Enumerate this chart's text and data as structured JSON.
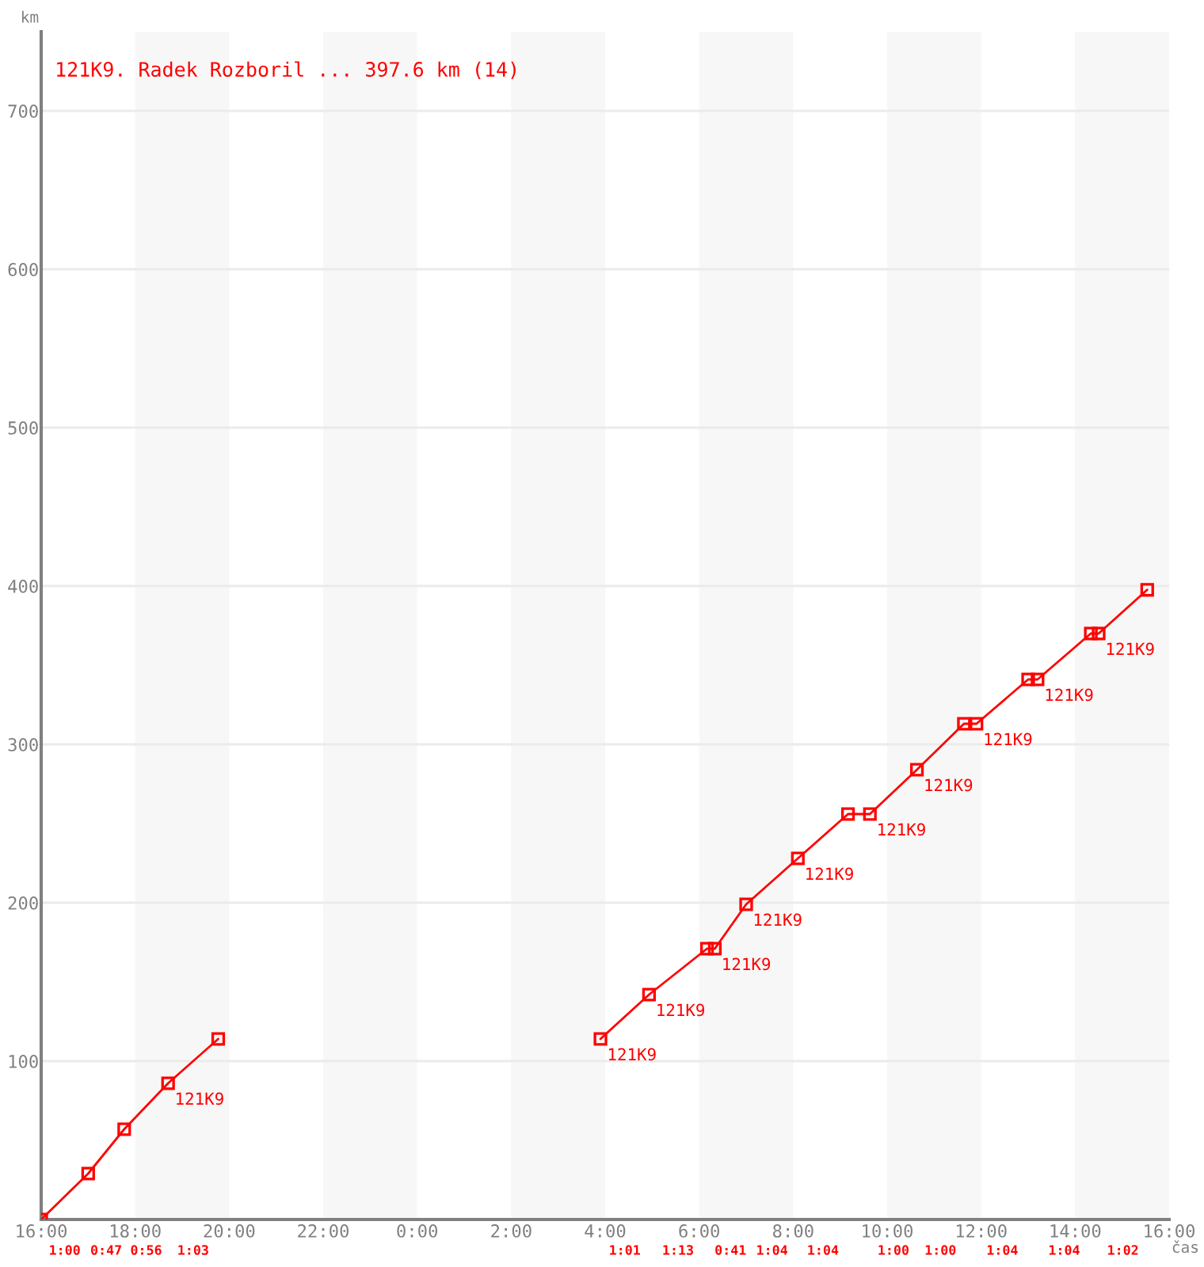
{
  "chart_data": {
    "type": "line",
    "title": "121K9. Radek Rozboril ... 397.6 km (14)",
    "xlabel": "čas",
    "ylabel": "km",
    "series": [
      {
        "color": "#ff0000",
        "x": [
          "2000-01-01T16:00",
          "2000-01-01T17:00",
          "2000-01-01T17:46",
          "2000-01-01T18:42",
          "2000-01-01T19:46"
        ],
        "values": [
          0,
          29,
          57,
          86,
          114
        ]
      },
      {
        "color": "#ff0000",
        "x": [
          "2000-01-02T03:54",
          "2000-01-02T04:56",
          "2000-01-02T06:10",
          "2000-01-02T06:20",
          "2000-01-02T07:00",
          "2000-01-02T08:06",
          "2000-01-02T09:10",
          "2000-01-02T09:38",
          "2000-01-02T10:38",
          "2000-01-02T11:38",
          "2000-01-02T11:54",
          "2000-01-02T13:00",
          "2000-01-02T13:12",
          "2000-01-02T14:20",
          "2000-01-02T14:30",
          "2000-01-02T15:32"
        ],
        "values": [
          114,
          142,
          171,
          171,
          199,
          228,
          256,
          256,
          284,
          313,
          313,
          341,
          341,
          370,
          370,
          397.6
        ]
      }
    ],
    "xlim": [
      "2000-01-01T16:00",
      "2000-01-02T16:00"
    ],
    "xticks": [
      {
        "value": "2000-01-01T16:00",
        "label": "16:00"
      },
      {
        "value": "2000-01-01T18:00",
        "label": "18:00"
      },
      {
        "value": "2000-01-01T20:00",
        "label": "20:00"
      },
      {
        "value": "2000-01-01T22:00",
        "label": "22:00"
      },
      {
        "value": "2000-01-02T00:00",
        "label": "0:00"
      },
      {
        "value": "2000-01-02T02:00",
        "label": "2:00"
      },
      {
        "value": "2000-01-02T04:00",
        "label": "4:00"
      },
      {
        "value": "2000-01-02T06:00",
        "label": "6:00"
      },
      {
        "value": "2000-01-02T08:00",
        "label": "8:00"
      },
      {
        "value": "2000-01-02T10:00",
        "label": "10:00"
      },
      {
        "value": "2000-01-02T12:00",
        "label": "12:00"
      },
      {
        "value": "2000-01-02T14:00",
        "label": "14:00"
      },
      {
        "value": "2000-01-02T16:00",
        "label": "16:00"
      }
    ],
    "ylim": [
      0,
      750
    ],
    "yticks": [
      100,
      200,
      300,
      400,
      500,
      600,
      700
    ],
    "grid": "y",
    "marker": "square",
    "line_style": "solid",
    "bands": [
      {
        "axis": "x",
        "from": "2000-01-01T18:00",
        "to": "2000-01-01T20:00",
        "color": "#f7f7f7"
      },
      {
        "axis": "x",
        "from": "2000-01-01T22:00",
        "to": "2000-01-02T00:00",
        "color": "#f7f7f7"
      },
      {
        "axis": "x",
        "from": "2000-01-02T02:00",
        "to": "2000-01-02T04:00",
        "color": "#f7f7f7"
      },
      {
        "axis": "x",
        "from": "2000-01-02T06:00",
        "to": "2000-01-02T08:00",
        "color": "#f7f7f7"
      },
      {
        "axis": "x",
        "from": "2000-01-02T10:00",
        "to": "2000-01-02T12:00",
        "color": "#f7f7f7"
      },
      {
        "axis": "x",
        "from": "2000-01-02T14:00",
        "to": "2000-01-02T16:00",
        "color": "#f7f7f7"
      }
    ],
    "annotations": [
      {
        "text": "121K9",
        "x": "2000-01-01T18:42",
        "y": 86
      },
      {
        "text": "121K9",
        "x": "2000-01-02T03:54",
        "y": 114
      },
      {
        "text": "121K9",
        "x": "2000-01-02T04:56",
        "y": 142
      },
      {
        "text": "121K9",
        "x": "2000-01-02T06:20",
        "y": 171
      },
      {
        "text": "121K9",
        "x": "2000-01-02T07:00",
        "y": 199
      },
      {
        "text": "121K9",
        "x": "2000-01-02T08:06",
        "y": 228
      },
      {
        "text": "121K9",
        "x": "2000-01-02T09:38",
        "y": 256
      },
      {
        "text": "121K9",
        "x": "2000-01-02T10:38",
        "y": 284
      },
      {
        "text": "121K9",
        "x": "2000-01-02T11:54",
        "y": 313
      },
      {
        "text": "121K9",
        "x": "2000-01-02T13:12",
        "y": 341
      },
      {
        "text": "121K9",
        "x": "2000-01-02T14:30",
        "y": 370
      },
      "1:00",
      "0:47",
      "0:56",
      "1:03",
      "1:01",
      "1:13",
      "0:41",
      "1:04",
      "1:04",
      "1:00",
      "1:00",
      "1:04",
      "1:04",
      "1:02"
    ]
  }
}
